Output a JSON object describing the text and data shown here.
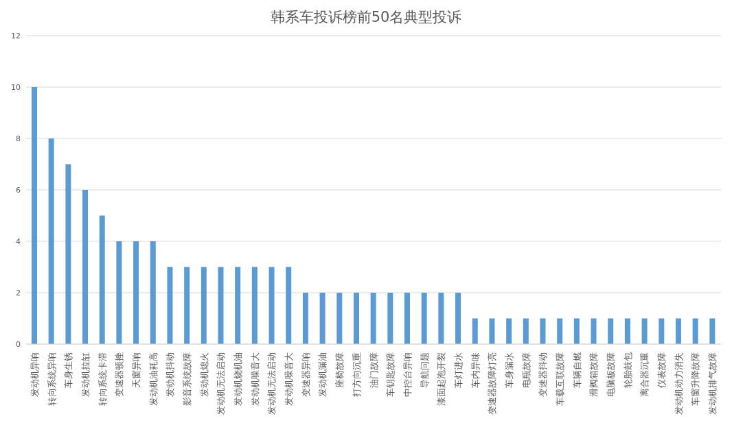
{
  "chart_data": {
    "type": "bar",
    "title": "韩系车投诉榜前50名典型投诉",
    "categories": [
      "发动机异响",
      "转向系统异响",
      "车身生锈",
      "发动机拉缸",
      "转向系统卡滞",
      "变速器顿挫",
      "天窗异响",
      "发动机油耗高",
      "发动机抖动",
      "影音系统故障",
      "发动机熄火",
      "发动机无法启动",
      "发动机烧机油",
      "发动机噪音大",
      "发动机无法启动",
      "发动机噪音大",
      "变速器异响",
      "发动机漏油",
      "座椅故障",
      "打方向沉重",
      "油门故障",
      "车钥匙故障",
      "中控台异响",
      "导航问题",
      "漆面起泡开裂",
      "车灯进水",
      "车内异味",
      "变速器故障灯亮",
      "车身漏水",
      "电瓶故障",
      "变速器抖动",
      "车载互联故障",
      "车辆自燃",
      "滑阀箱故障",
      "电脑板故障",
      "轮胎鼓包",
      "离合器沉重",
      "仪表故障",
      "发动机动力消失",
      "车窗升降故障",
      "发动机排气故障"
    ],
    "values": [
      10,
      8,
      7,
      6,
      5,
      4,
      4,
      4,
      3,
      3,
      3,
      3,
      3,
      3,
      3,
      3,
      2,
      2,
      2,
      2,
      2,
      2,
      2,
      2,
      2,
      2,
      1,
      1,
      1,
      1,
      1,
      1,
      1,
      1,
      1,
      1,
      1,
      1,
      1,
      1,
      1
    ],
    "color": "#5b9bd5",
    "ylim": [
      0,
      12
    ],
    "yticks": [
      0,
      2,
      4,
      6,
      8,
      10,
      12
    ],
    "grid": "y"
  }
}
